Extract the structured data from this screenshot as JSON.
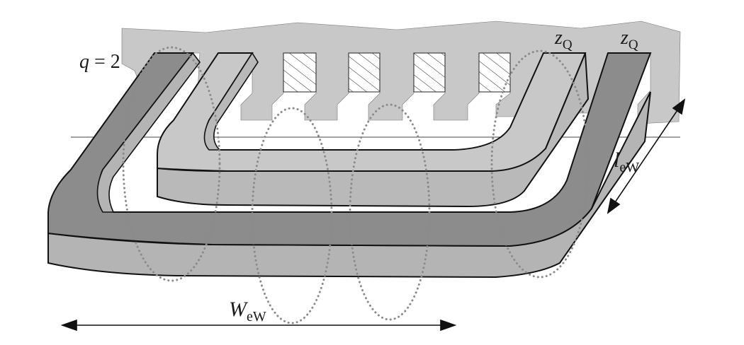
{
  "labels": {
    "slots_per_pole": {
      "symbol": "q",
      "equals": " = ",
      "value": "2"
    },
    "conductors_left": {
      "symbol": "z",
      "subscript": "Q"
    },
    "conductors_right": {
      "symbol": "z",
      "subscript": "Q"
    },
    "end_winding_width": {
      "symbol": "W",
      "subscript": "eW"
    },
    "end_winding_length": {
      "symbol": "l",
      "subscript": "eW"
    }
  },
  "colors": {
    "stator_lamination": "#c8c8c8",
    "outer_coil_top": "#8c8c8c",
    "outer_coil_side": "#b4b4b4",
    "inner_coil_top": "#c8c8c8",
    "inner_coil_side": "#b9b9b9",
    "flux_lines": "#8a8a8a",
    "outline": "#111111"
  }
}
